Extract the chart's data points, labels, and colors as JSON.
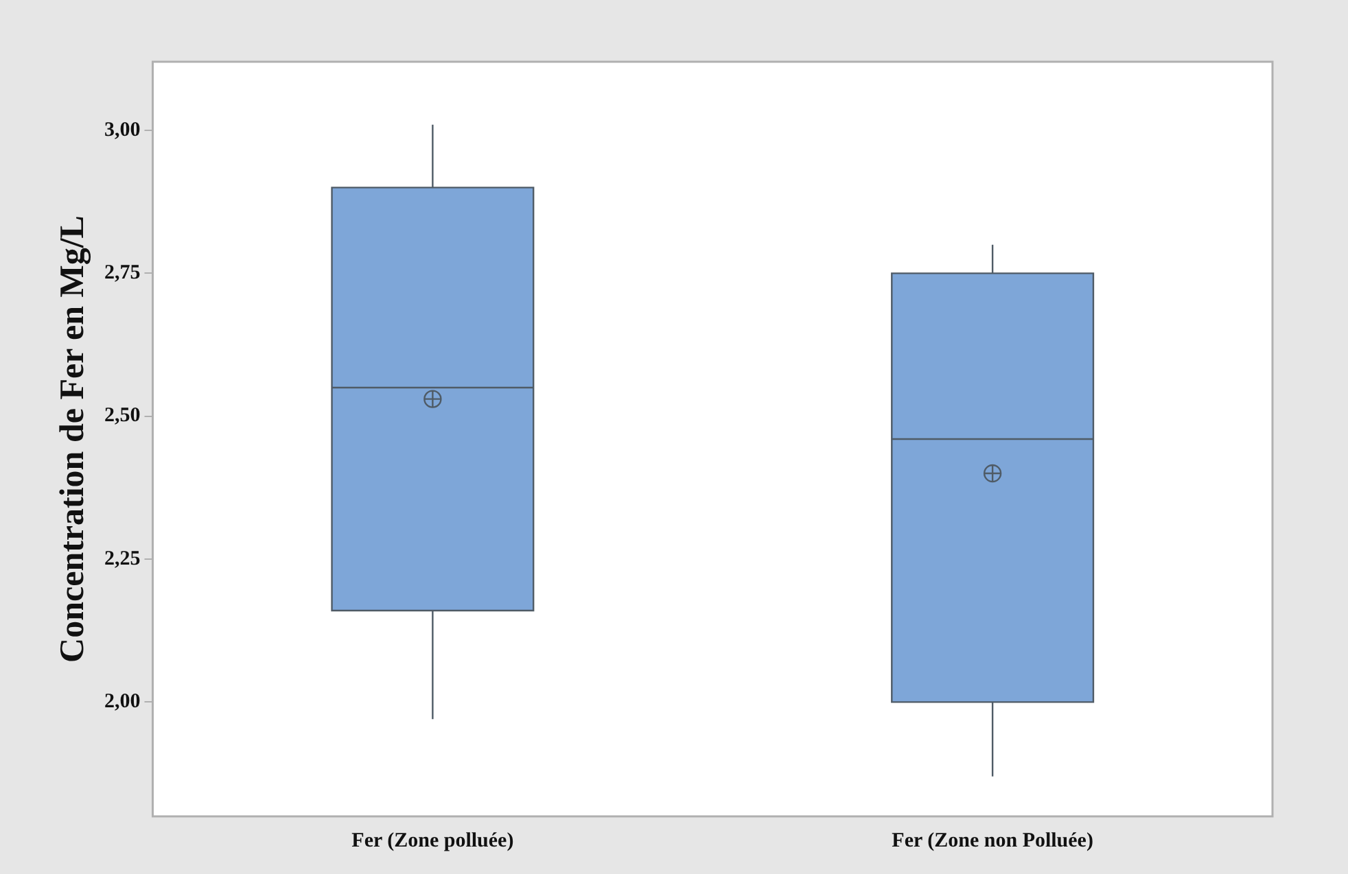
{
  "chart_data": {
    "type": "box",
    "ylabel": "Concentration de Fer en Mg/L",
    "categories": [
      "Fer (Zone polluée)",
      "Fer (Zone non Polluée)"
    ],
    "color": "#7ea6d8",
    "boxes": [
      {
        "low": 1.97,
        "q1": 2.16,
        "median": 2.55,
        "q3": 2.9,
        "high": 3.01,
        "mean": 2.53
      },
      {
        "low": 1.87,
        "q1": 2.0,
        "median": 2.46,
        "q3": 2.75,
        "high": 2.8,
        "mean": 2.4
      }
    ],
    "ylim": [
      1.8,
      3.12
    ],
    "yticks": [
      {
        "value": 2,
        "label": "2,00"
      },
      {
        "value": 2.25,
        "label": "2,25"
      },
      {
        "value": 2.5,
        "label": "2,50"
      },
      {
        "value": 2.75,
        "label": "2,75"
      },
      {
        "value": 3,
        "label": "3,00"
      }
    ],
    "grid": false
  }
}
